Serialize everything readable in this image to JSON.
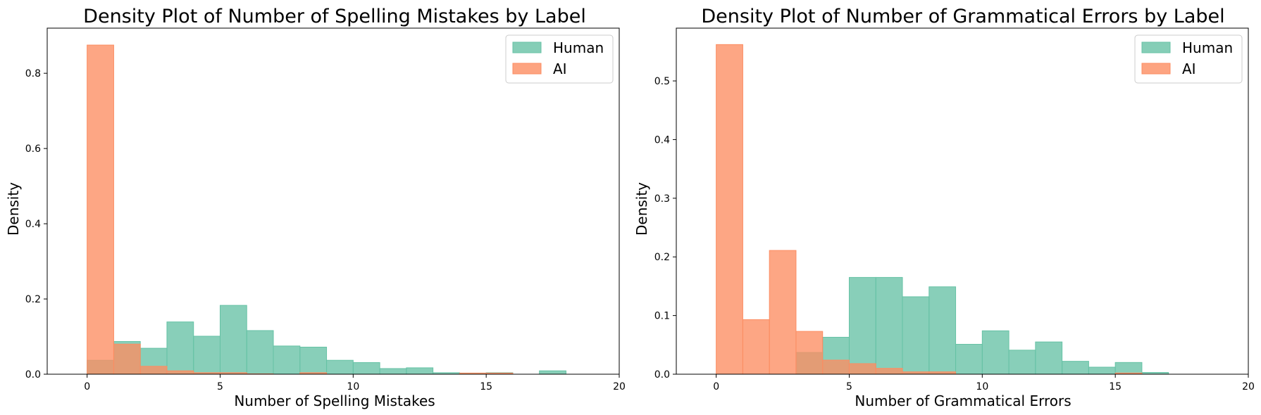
{
  "colors": {
    "human": "#66c2a5",
    "ai": "#fc8d62"
  },
  "chart_data": [
    {
      "type": "histogram",
      "title": "Density Plot of Number of Spelling Mistakes by Label",
      "xlabel": "Number of Spelling Mistakes",
      "ylabel": "Density",
      "xlim": [
        -1.5,
        20
      ],
      "ylim": [
        0,
        0.92
      ],
      "xticks": [
        0,
        5,
        10,
        15,
        20
      ],
      "yticks": [
        0.0,
        0.2,
        0.4,
        0.6,
        0.8
      ],
      "ytick_labels": [
        "0.0",
        "0.2",
        "0.4",
        "0.6",
        "0.8"
      ],
      "bin_edges": [
        0,
        1,
        2,
        3,
        4,
        5,
        6,
        7,
        8,
        9,
        10,
        11,
        12,
        13,
        14,
        15,
        16,
        17,
        18,
        19
      ],
      "legend": {
        "placement": "top-right",
        "entries": [
          "Human",
          "AI"
        ]
      },
      "series": [
        {
          "name": "Human",
          "values": [
            0.037,
            0.087,
            0.069,
            0.139,
            0.101,
            0.183,
            0.116,
            0.075,
            0.072,
            0.037,
            0.031,
            0.015,
            0.017,
            0.004,
            0.003,
            0.004,
            0.0,
            0.009
          ]
        },
        {
          "name": "AI",
          "values": [
            0.875,
            0.08,
            0.021,
            0.009,
            0.004,
            0.004,
            0.001,
            0.0,
            0.004,
            0.0,
            0.0,
            0.0,
            0.0,
            0.0,
            0.003,
            0.003,
            0.0,
            0.0
          ]
        }
      ]
    },
    {
      "type": "histogram",
      "title": "Density Plot of Number of Grammatical Errors by Label",
      "xlabel": "Number of Grammatical Errors",
      "ylabel": "Density",
      "xlim": [
        -1.5,
        20
      ],
      "ylim": [
        0,
        0.59
      ],
      "xticks": [
        0,
        5,
        10,
        15,
        20
      ],
      "yticks": [
        0.0,
        0.1,
        0.2,
        0.3,
        0.4,
        0.5
      ],
      "ytick_labels": [
        "0.0",
        "0.1",
        "0.2",
        "0.3",
        "0.4",
        "0.5"
      ],
      "bin_edges": [
        0,
        1,
        2,
        3,
        4,
        5,
        6,
        7,
        8,
        9,
        10,
        11,
        12,
        13,
        14,
        15,
        16,
        17,
        18,
        19
      ],
      "legend": {
        "placement": "top-right",
        "entries": [
          "Human",
          "AI"
        ]
      },
      "series": [
        {
          "name": "Human",
          "values": [
            0.0,
            0.0,
            0.0,
            0.037,
            0.063,
            0.165,
            0.165,
            0.132,
            0.149,
            0.051,
            0.074,
            0.041,
            0.055,
            0.022,
            0.012,
            0.02,
            0.003,
            0.0
          ]
        },
        {
          "name": "AI",
          "values": [
            0.562,
            0.093,
            0.211,
            0.073,
            0.024,
            0.018,
            0.01,
            0.004,
            0.004,
            0.0,
            0.0,
            0.0,
            0.0,
            0.0,
            0.0,
            0.002,
            0.0,
            0.0
          ]
        }
      ]
    }
  ]
}
